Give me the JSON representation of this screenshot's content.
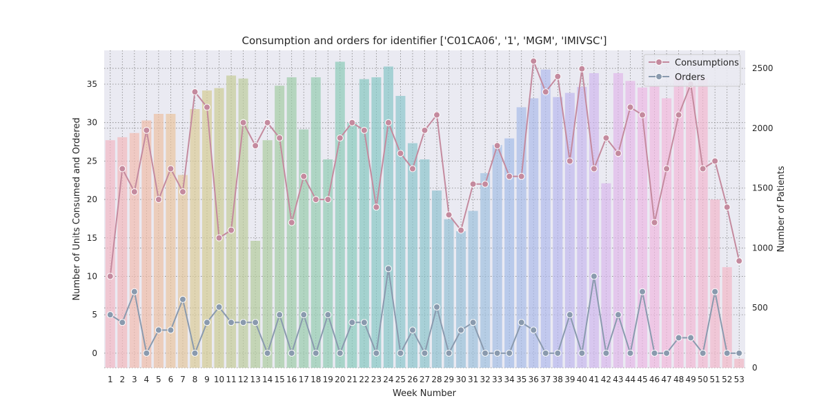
{
  "chart_data": {
    "type": "bar+line",
    "title": "Consumption and orders for identifier ['C01CA06', '1', 'MGM', 'IMIVSC']",
    "xlabel": "Week Number",
    "ylabel_left": "Number of Units Consumed and Ordered",
    "ylabel_right": "Number of Patients",
    "ylim_left": [
      -1.9,
      39.4
    ],
    "ylim_right": [
      0,
      2650
    ],
    "yticks_left": [
      0,
      5,
      10,
      15,
      20,
      25,
      30,
      35
    ],
    "yticks_right": [
      0,
      500,
      1000,
      1500,
      2000,
      2500
    ],
    "grid": true,
    "legend_position": "top-right",
    "categories": [
      "1",
      "2",
      "3",
      "4",
      "5",
      "6",
      "7",
      "8",
      "9",
      "10",
      "11",
      "12",
      "13",
      "14",
      "15",
      "16",
      "17",
      "18",
      "19",
      "20",
      "21",
      "22",
      "23",
      "24",
      "25",
      "26",
      "27",
      "28",
      "29",
      "30",
      "31",
      "32",
      "33",
      "34",
      "35",
      "36",
      "37",
      "38",
      "39",
      "40",
      "41",
      "42",
      "43",
      "44",
      "45",
      "46",
      "47",
      "48",
      "49",
      "50",
      "51",
      "52",
      "53"
    ],
    "bars": {
      "name": "Number of Patients",
      "axis": "right",
      "values": [
        1900,
        1925,
        1960,
        2065,
        2120,
        2120,
        1610,
        2160,
        2315,
        2335,
        2440,
        2415,
        1060,
        1900,
        2355,
        2425,
        1990,
        2425,
        1740,
        2555,
        2045,
        2410,
        2425,
        2515,
        2270,
        1875,
        1740,
        1480,
        1240,
        1140,
        1310,
        1625,
        1860,
        1915,
        2175,
        2250,
        2490,
        2260,
        2295,
        2345,
        2460,
        1540,
        2460,
        2395,
        2340,
        2350,
        2250,
        2425,
        2380,
        2420,
        1405,
        840,
        75
      ],
      "colors": [
        "#f2b8c4",
        "#f2b8bc",
        "#f2bcb0",
        "#f0bca8",
        "#ecc0a4",
        "#eac4a0",
        "#e4c89e",
        "#dccc98",
        "#d4cc94",
        "#cccc94",
        "#c4cc98",
        "#bccc9c",
        "#b4cc9c",
        "#acccA0",
        "#a4cca4",
        "#9ccca8",
        "#98ccac",
        "#94ccb0",
        "#90ccb4",
        "#8ccab8",
        "#88cabc",
        "#86c8c0",
        "#86c8c4",
        "#88c6c8",
        "#8ac6cc",
        "#8cc4cc",
        "#8cc4cc",
        "#90c2d0",
        "#94c0d4",
        "#98c0d8",
        "#9cc0dc",
        "#a0c0e0",
        "#a4bee4",
        "#a4bce8",
        "#a8bce8",
        "#acbaea",
        "#b0baec",
        "#b8b8ee",
        "#c0b8ee",
        "#c8b8ee",
        "#d0b8ee",
        "#d8b8ec",
        "#e0b8ea",
        "#e6b8e8",
        "#ecb8e4",
        "#f0b8e0",
        "#f2b8dc",
        "#f2b8d8",
        "#f2b8d4",
        "#f2b8d0",
        "#f2b8cc",
        "#f2b8c8",
        "#f2b8c4"
      ]
    },
    "series": [
      {
        "name": "Consumptions",
        "axis": "left",
        "color": "#c48a9e",
        "values": [
          10,
          24,
          21,
          29,
          20,
          24,
          21,
          34,
          32,
          15,
          16,
          30,
          27,
          30,
          28,
          17,
          23,
          20,
          20,
          28,
          30,
          29,
          19,
          30,
          26,
          24,
          29,
          31,
          18,
          16,
          22,
          22,
          27,
          23,
          23,
          38,
          34,
          36,
          25,
          37,
          24,
          28,
          26,
          32,
          31,
          17,
          24,
          31,
          35,
          24,
          25,
          19,
          12
        ]
      },
      {
        "name": "Orders",
        "axis": "left",
        "color": "#8a9aae",
        "values": [
          5,
          4,
          8,
          0,
          3,
          3,
          7,
          0,
          4,
          6,
          4,
          4,
          4,
          0,
          5,
          0,
          5,
          0,
          5,
          0,
          4,
          4,
          0,
          11,
          0,
          3,
          0,
          6,
          0,
          3,
          4,
          0,
          0,
          0,
          4,
          3,
          0,
          0,
          5,
          0,
          10,
          0,
          5,
          0,
          8,
          0,
          0,
          2,
          2,
          0,
          8,
          0,
          0
        ]
      }
    ]
  }
}
